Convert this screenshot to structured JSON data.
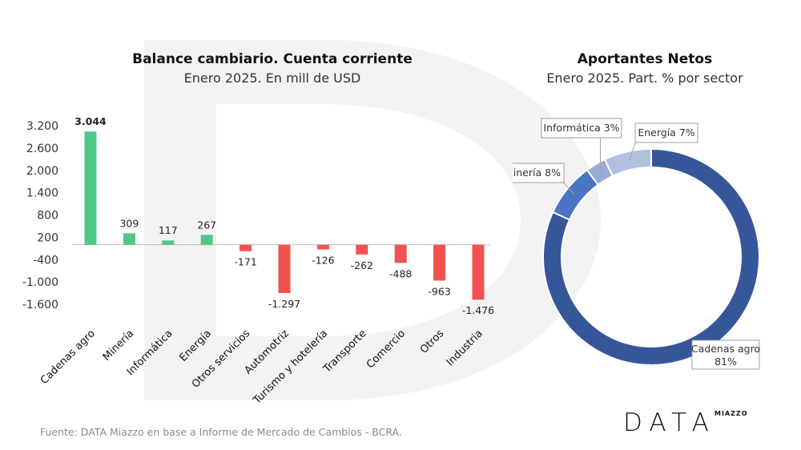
{
  "bar_chart": {
    "title": "Balance cambiario. Cuenta corriente",
    "subtitle": "Enero 2025. En mill de USD"
  },
  "donut_chart": {
    "title": "Aportantes Netos",
    "subtitle": "Enero 2025. Part. % por sector"
  },
  "footer": {
    "source": "Fuente: DATA Miazzo en base a Informe de Mercado de Cambios - BCRA."
  },
  "logo": {
    "main": "DATA",
    "small": "MIAZZO"
  },
  "colors": {
    "positive": "#52c888",
    "negative": "#f05252",
    "agro": "#36569a",
    "mineria": "#4a74c4",
    "informatica": "#9aacd6",
    "energia": "#b2bfe0"
  },
  "chart_data": [
    {
      "type": "bar",
      "title": "Balance cambiario. Cuenta corriente",
      "subtitle": "Enero 2025. En mill de USD",
      "categories": [
        "Cadenas agro",
        "Minería",
        "Informática",
        "Energía",
        "Otros servicios",
        "Automotriz",
        "Turismo y hotelería",
        "Transporte",
        "Comercio",
        "Otros",
        "Industria"
      ],
      "values": [
        3044,
        309,
        117,
        267,
        -171,
        -1297,
        -126,
        -262,
        -488,
        -963,
        -1476
      ],
      "value_labels": [
        "3.044",
        "309",
        "117",
        "267",
        "-171",
        "-1.297",
        "-126",
        "-262",
        "-488",
        "-963",
        "-1.476"
      ],
      "yticks": [
        3200,
        2600,
        2000,
        1400,
        800,
        200,
        -400,
        -1000,
        -1600
      ],
      "ytick_labels": [
        "3.200",
        "2.600",
        "2.000",
        "1.400",
        "800",
        "200",
        "-400",
        "-1.000",
        "-1.600"
      ],
      "ylim": [
        -1600,
        3200
      ],
      "xlabel": "",
      "ylabel": ""
    },
    {
      "type": "pie",
      "title": "Aportantes Netos",
      "subtitle": "Enero 2025. Part. % por sector",
      "labels": [
        "Cadenas agro",
        "Minería",
        "Informática",
        "Energía"
      ],
      "values": [
        81,
        8,
        3,
        7
      ],
      "value_labels": [
        "81%",
        "8%",
        "3%",
        "7%"
      ]
    }
  ]
}
